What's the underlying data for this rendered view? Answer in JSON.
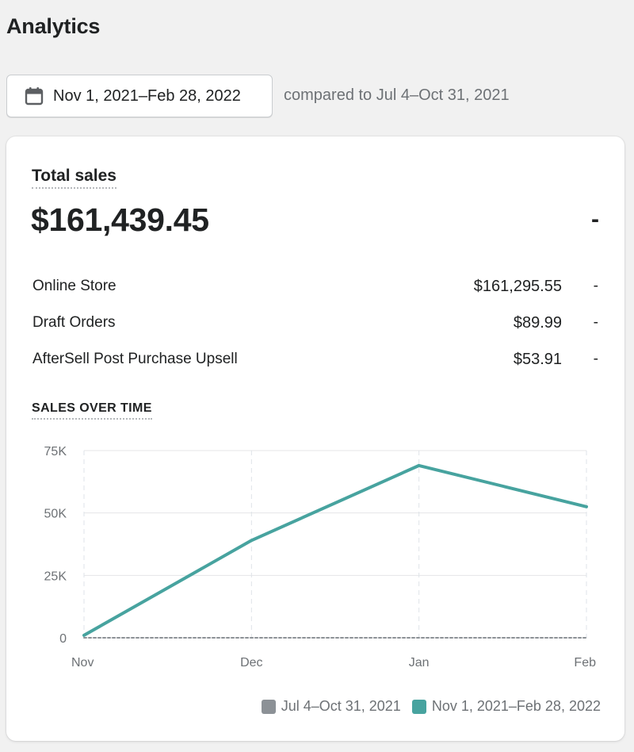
{
  "page": {
    "title": "Analytics"
  },
  "date_picker": {
    "label": "Nov 1, 2021–Feb 28, 2022",
    "icon": "calendar-icon",
    "comparison": "compared to Jul 4–Oct 31, 2021"
  },
  "total_sales": {
    "title": "Total sales",
    "value": "$161,439.45",
    "change": "-",
    "channels": [
      {
        "name": "Online Store",
        "value": "$161,295.55",
        "change": "-"
      },
      {
        "name": "Draft Orders",
        "value": "$89.99",
        "change": "-"
      },
      {
        "name": "AfterSell Post Purchase Upsell",
        "value": "$53.91",
        "change": "-"
      }
    ]
  },
  "sales_over_time": {
    "heading": "SALES OVER TIME",
    "chart_data": {
      "type": "line",
      "categories": [
        "Nov",
        "Dec",
        "Jan",
        "Feb"
      ],
      "y_ticks": [
        "0",
        "25K",
        "50K",
        "75K"
      ],
      "ylim": [
        0,
        75000
      ],
      "grid": true,
      "legend_position": "bottom-right",
      "series": [
        {
          "name": "Jul 4–Oct 31, 2021",
          "color": "#8c9196",
          "dashed": true,
          "values": [
            0,
            0,
            0,
            0
          ]
        },
        {
          "name": "Nov 1, 2021–Feb 28, 2022",
          "color": "#47a39f",
          "dashed": false,
          "values": [
            1000,
            39000,
            69000,
            52500
          ]
        }
      ]
    }
  }
}
